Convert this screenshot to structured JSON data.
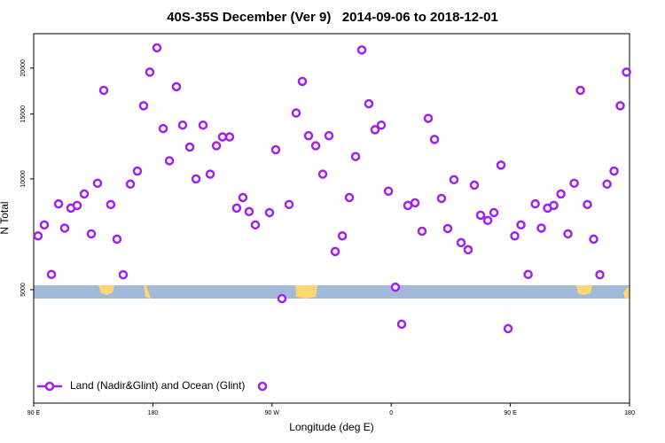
{
  "chart_data": {
    "type": "scatter",
    "title": "40S-35S December (Ver 9)   2014-09-06 to 2018-12-01",
    "x_label": "Longitude (deg E)",
    "y_label": "N Total",
    "xlim": [
      90,
      540
    ],
    "xticks": [
      {
        "value": 90,
        "label": "90 E"
      },
      {
        "value": 180,
        "label": "180"
      },
      {
        "value": 270,
        "label": "90 W"
      },
      {
        "value": 360,
        "label": "0"
      },
      {
        "value": 450,
        "label": "90 E"
      },
      {
        "value": 540,
        "label": "180"
      }
    ],
    "ylim": [
      2460,
      24800
    ],
    "yticks": [
      5000,
      10000,
      15000,
      20000
    ],
    "yscale": "log",
    "legend": "lower left",
    "series": [
      {
        "name": "Land (Nadir&Glint) and Ocean (Glint)",
        "color": "#a020f0",
        "x": [
          93.3,
          98.0,
          103.4,
          108.8,
          113.4,
          118.1,
          122.8,
          128.2,
          133.5,
          138.2,
          142.9,
          148.2,
          152.9,
          157.6,
          163.0,
          168.3,
          173.0,
          177.7,
          183.1,
          187.8,
          192.5,
          197.8,
          202.5,
          207.9,
          212.6,
          217.9,
          223.3,
          228.0,
          232.6,
          238.0,
          243.3,
          248.0,
          252.7,
          257.4,
          268.1,
          272.8,
          277.5,
          282.9,
          288.2,
          292.9,
          297.6,
          303.0,
          308.3,
          313.0,
          317.7,
          323.1,
          328.4,
          333.1,
          337.8,
          343.1,
          347.8,
          352.5,
          357.9,
          363.2,
          367.9,
          372.6,
          378.0,
          383.3,
          388.0,
          392.7,
          398.0,
          402.7,
          407.4,
          412.8,
          418.1,
          422.8,
          427.5,
          432.9,
          437.6,
          442.9,
          448.3,
          453.3,
          458.0,
          463.4,
          468.8,
          473.4,
          478.1,
          482.8,
          488.2,
          493.5,
          498.2,
          502.9,
          508.2,
          512.9,
          517.6,
          523.0,
          528.3,
          533.0,
          537.7
        ],
        "values": [
          7000,
          7500,
          5500,
          8550,
          7350,
          8330,
          8470,
          9100,
          7090,
          9730,
          17400,
          8520,
          6860,
          5490,
          9680,
          10500,
          15800,
          19500,
          22700,
          13700,
          11200,
          17800,
          14000,
          12200,
          10000,
          14000,
          10300,
          12300,
          13000,
          13000,
          8330,
          8900,
          8150,
          7500,
          8100,
          12000,
          4730,
          8520,
          15100,
          18400,
          13100,
          12300,
          10300,
          13100,
          6350,
          7000,
          8900,
          11500,
          22400,
          16000,
          13600,
          14000,
          9260,
          5080,
          4030,
          8470,
          8610,
          7210,
          14600,
          12800,
          8850,
          7330,
          9950,
          6710,
          6420,
          9620,
          7970,
          7710,
          8100,
          10900,
          3920,
          7000,
          7500,
          5500,
          8550,
          7350,
          8330,
          8470,
          9100,
          7090,
          9730,
          17400,
          8520,
          6860,
          5490,
          9680,
          10500,
          15800,
          19500
        ]
      }
    ]
  }
}
